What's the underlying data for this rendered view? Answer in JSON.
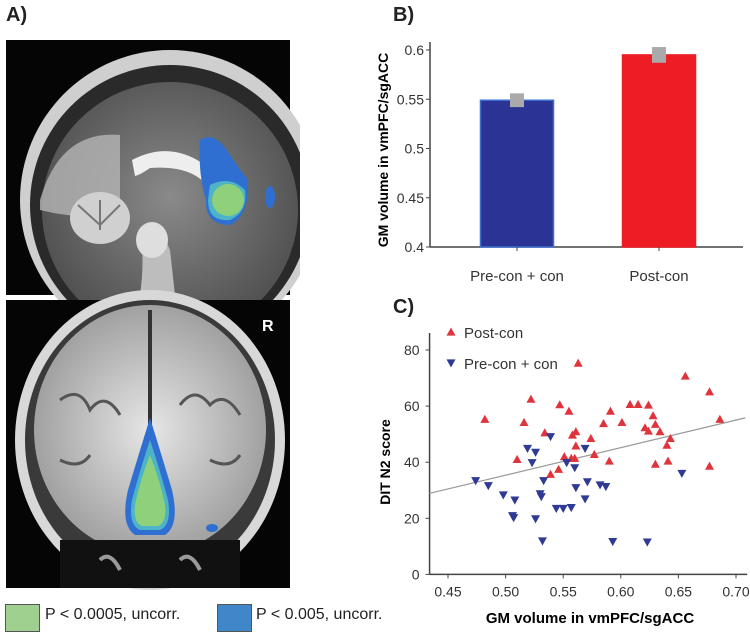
{
  "panels": {
    "a": "A)",
    "b": "B)",
    "c": "C)"
  },
  "brain": {
    "orientation_label": "R"
  },
  "legend_maps": [
    {
      "label": "P < 0.0005, uncorr.",
      "color": "#9fd08f"
    },
    {
      "label": "P < 0.005, uncorr.",
      "color": "#3f87c9"
    }
  ],
  "chart_data": [
    {
      "type": "bar",
      "title": "",
      "categories": [
        "Pre-con + con",
        "Post-con"
      ],
      "values": [
        0.549,
        0.595
      ],
      "errors": [
        0.007,
        0.008
      ],
      "colors": [
        "#2b3494",
        "#ee1c25"
      ],
      "ylabel": "GM volume in vmPFC/sgACC",
      "xlabel": "",
      "ylim": [
        0.4,
        0.6
      ],
      "yticks": [
        "0.4",
        "0.45",
        "0.5",
        "0.55",
        "0.6"
      ],
      "grid": false
    },
    {
      "type": "scatter",
      "xlabel": "GM volume in vmPFC/sgACC",
      "ylabel": "DIT N2 score",
      "xlim": [
        0.434,
        0.708
      ],
      "ylim": [
        0,
        85
      ],
      "xticks": [
        "0.45",
        "0.50",
        "0.55",
        "0.60",
        "0.65",
        "0.70"
      ],
      "yticks": [
        "0",
        "20",
        "40",
        "60",
        "80"
      ],
      "legend_position": "top-left",
      "grid": false,
      "series": [
        {
          "name": "Post-con",
          "color": "#e0343c",
          "marker": "triangle-up",
          "points": [
            [
              0.482,
              55.3
            ],
            [
              0.522,
              62.5
            ],
            [
              0.516,
              54.2
            ],
            [
              0.51,
              41.0
            ],
            [
              0.534,
              50.5
            ],
            [
              0.547,
              60.5
            ],
            [
              0.555,
              58.2
            ],
            [
              0.563,
              75.3
            ],
            [
              0.561,
              50.9
            ],
            [
              0.558,
              49.7
            ],
            [
              0.561,
              45.8
            ],
            [
              0.551,
              42.0
            ],
            [
              0.557,
              41.4
            ],
            [
              0.56,
              41.4
            ],
            [
              0.546,
              37.5
            ],
            [
              0.539,
              35.7
            ],
            [
              0.574,
              48.5
            ],
            [
              0.577,
              42.8
            ],
            [
              0.585,
              53.8
            ],
            [
              0.591,
              58.2
            ],
            [
              0.59,
              40.4
            ],
            [
              0.601,
              54.2
            ],
            [
              0.608,
              60.6
            ],
            [
              0.615,
              60.6
            ],
            [
              0.624,
              60.4
            ],
            [
              0.621,
              52.3
            ],
            [
              0.624,
              51.1
            ],
            [
              0.628,
              56.6
            ],
            [
              0.63,
              53.5
            ],
            [
              0.634,
              50.9
            ],
            [
              0.643,
              48.5
            ],
            [
              0.64,
              46.1
            ],
            [
              0.641,
              40.4
            ],
            [
              0.63,
              39.3
            ],
            [
              0.656,
              70.7
            ],
            [
              0.677,
              65.1
            ],
            [
              0.677,
              38.6
            ],
            [
              0.686,
              55.3
            ]
          ]
        },
        {
          "name": "Pre-con + con",
          "color": "#2e3a94",
          "marker": "triangle-down",
          "points": [
            [
              0.474,
              33.4
            ],
            [
              0.485,
              31.6
            ],
            [
              0.498,
              28.3
            ],
            [
              0.508,
              26.5
            ],
            [
              0.506,
              20.9
            ],
            [
              0.507,
              20.2
            ],
            [
              0.519,
              44.9
            ],
            [
              0.523,
              39.8
            ],
            [
              0.526,
              43.5
            ],
            [
              0.526,
              19.8
            ],
            [
              0.53,
              28.7
            ],
            [
              0.531,
              27.7
            ],
            [
              0.533,
              33.4
            ],
            [
              0.532,
              11.9
            ],
            [
              0.539,
              49.1
            ],
            [
              0.544,
              23.5
            ],
            [
              0.55,
              23.5
            ],
            [
              0.557,
              23.8
            ],
            [
              0.553,
              39.8
            ],
            [
              0.56,
              38.0
            ],
            [
              0.561,
              30.9
            ],
            [
              0.569,
              44.9
            ],
            [
              0.571,
              33.0
            ],
            [
              0.569,
              26.9
            ],
            [
              0.582,
              31.9
            ],
            [
              0.587,
              31.3
            ],
            [
              0.593,
              11.7
            ],
            [
              0.623,
              11.5
            ],
            [
              0.653,
              36.0
            ]
          ]
        }
      ],
      "regression_line": {
        "color": "#999999",
        "from": [
          0.434,
          28.9
        ],
        "to": [
          0.708,
          55.8
        ]
      }
    }
  ]
}
